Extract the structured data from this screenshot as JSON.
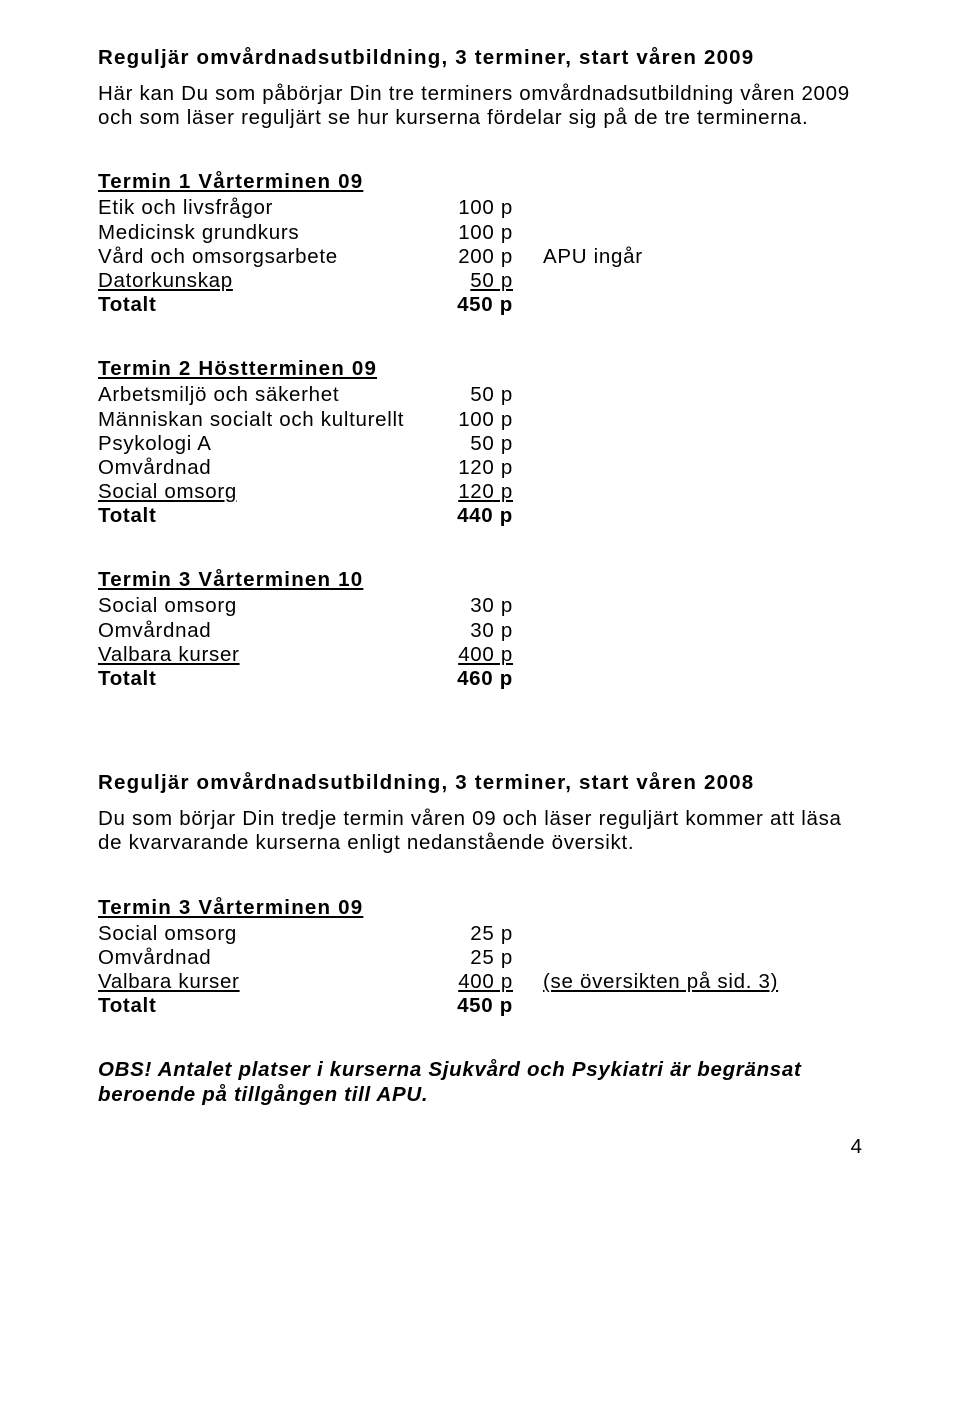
{
  "page": {
    "title1": "Reguljär omvårdnadsutbildning, 3 terminer, start våren 2009",
    "intro1": "Här kan Du som påbörjar Din tre terminers omvårdnadsutbildning våren 2009 och som läser reguljärt se hur kurserna fördelar sig på de tre terminerna.",
    "t1": {
      "head": "Termin 1 Vårterminen 09",
      "r": [
        {
          "label": "Etik och livsfrågor",
          "val": "100 p"
        },
        {
          "label": "Medicinsk grundkurs",
          "val": "100 p"
        },
        {
          "label": "Vård och omsorgsarbete",
          "val": "200 p",
          "note": "APU ingår"
        },
        {
          "label": "Datorkunskap",
          "val": "50 p",
          "ul": true
        }
      ],
      "total_label": "Totalt",
      "total_val": "450 p"
    },
    "t2": {
      "head": "Termin 2 Höstterminen 09",
      "r": [
        {
          "label": "Arbetsmiljö och säkerhet",
          "val": "50 p"
        },
        {
          "label": "Människan socialt och kulturellt",
          "val": "100 p"
        },
        {
          "label": "Psykologi A",
          "val": "50 p"
        },
        {
          "label": "Omvårdnad",
          "val": "120 p"
        },
        {
          "label": "Social omsorg",
          "val": "120 p",
          "ul": true
        }
      ],
      "total_label": "Totalt",
      "total_val": "440 p"
    },
    "t3": {
      "head": "Termin 3 Vårterminen 10",
      "r": [
        {
          "label": "Social omsorg",
          "val": "30 p"
        },
        {
          "label": "Omvårdnad",
          "val": "30 p"
        },
        {
          "label": "Valbara kurser",
          "val": "400 p",
          "ul": true
        }
      ],
      "total_label": "Totalt",
      "total_val": "460 p"
    },
    "title2": "Reguljär omvårdnadsutbildning, 3 terminer, start våren 2008",
    "intro2": "Du som börjar Din tredje termin våren 09 och läser reguljärt kommer att läsa de kvarvarande kurserna enligt nedanstående översikt.",
    "t3b": {
      "head": "Termin 3 Vårterminen 09",
      "r": [
        {
          "label": "Social omsorg",
          "val": "25 p"
        },
        {
          "label": "Omvårdnad",
          "val": "25 p"
        },
        {
          "label": "Valbara kurser",
          "val": "400 p",
          "ul": true,
          "note": "(se översikten på sid. 3)",
          "note_ul": true
        }
      ],
      "total_label": "Totalt",
      "total_val": "450 p"
    },
    "obs_prefix": "OBS!",
    "obs_text": " Antalet platser i kurserna Sjukvård och Psykiatri är begränsat beroende på tillgången till APU.",
    "pagenum": "4"
  }
}
